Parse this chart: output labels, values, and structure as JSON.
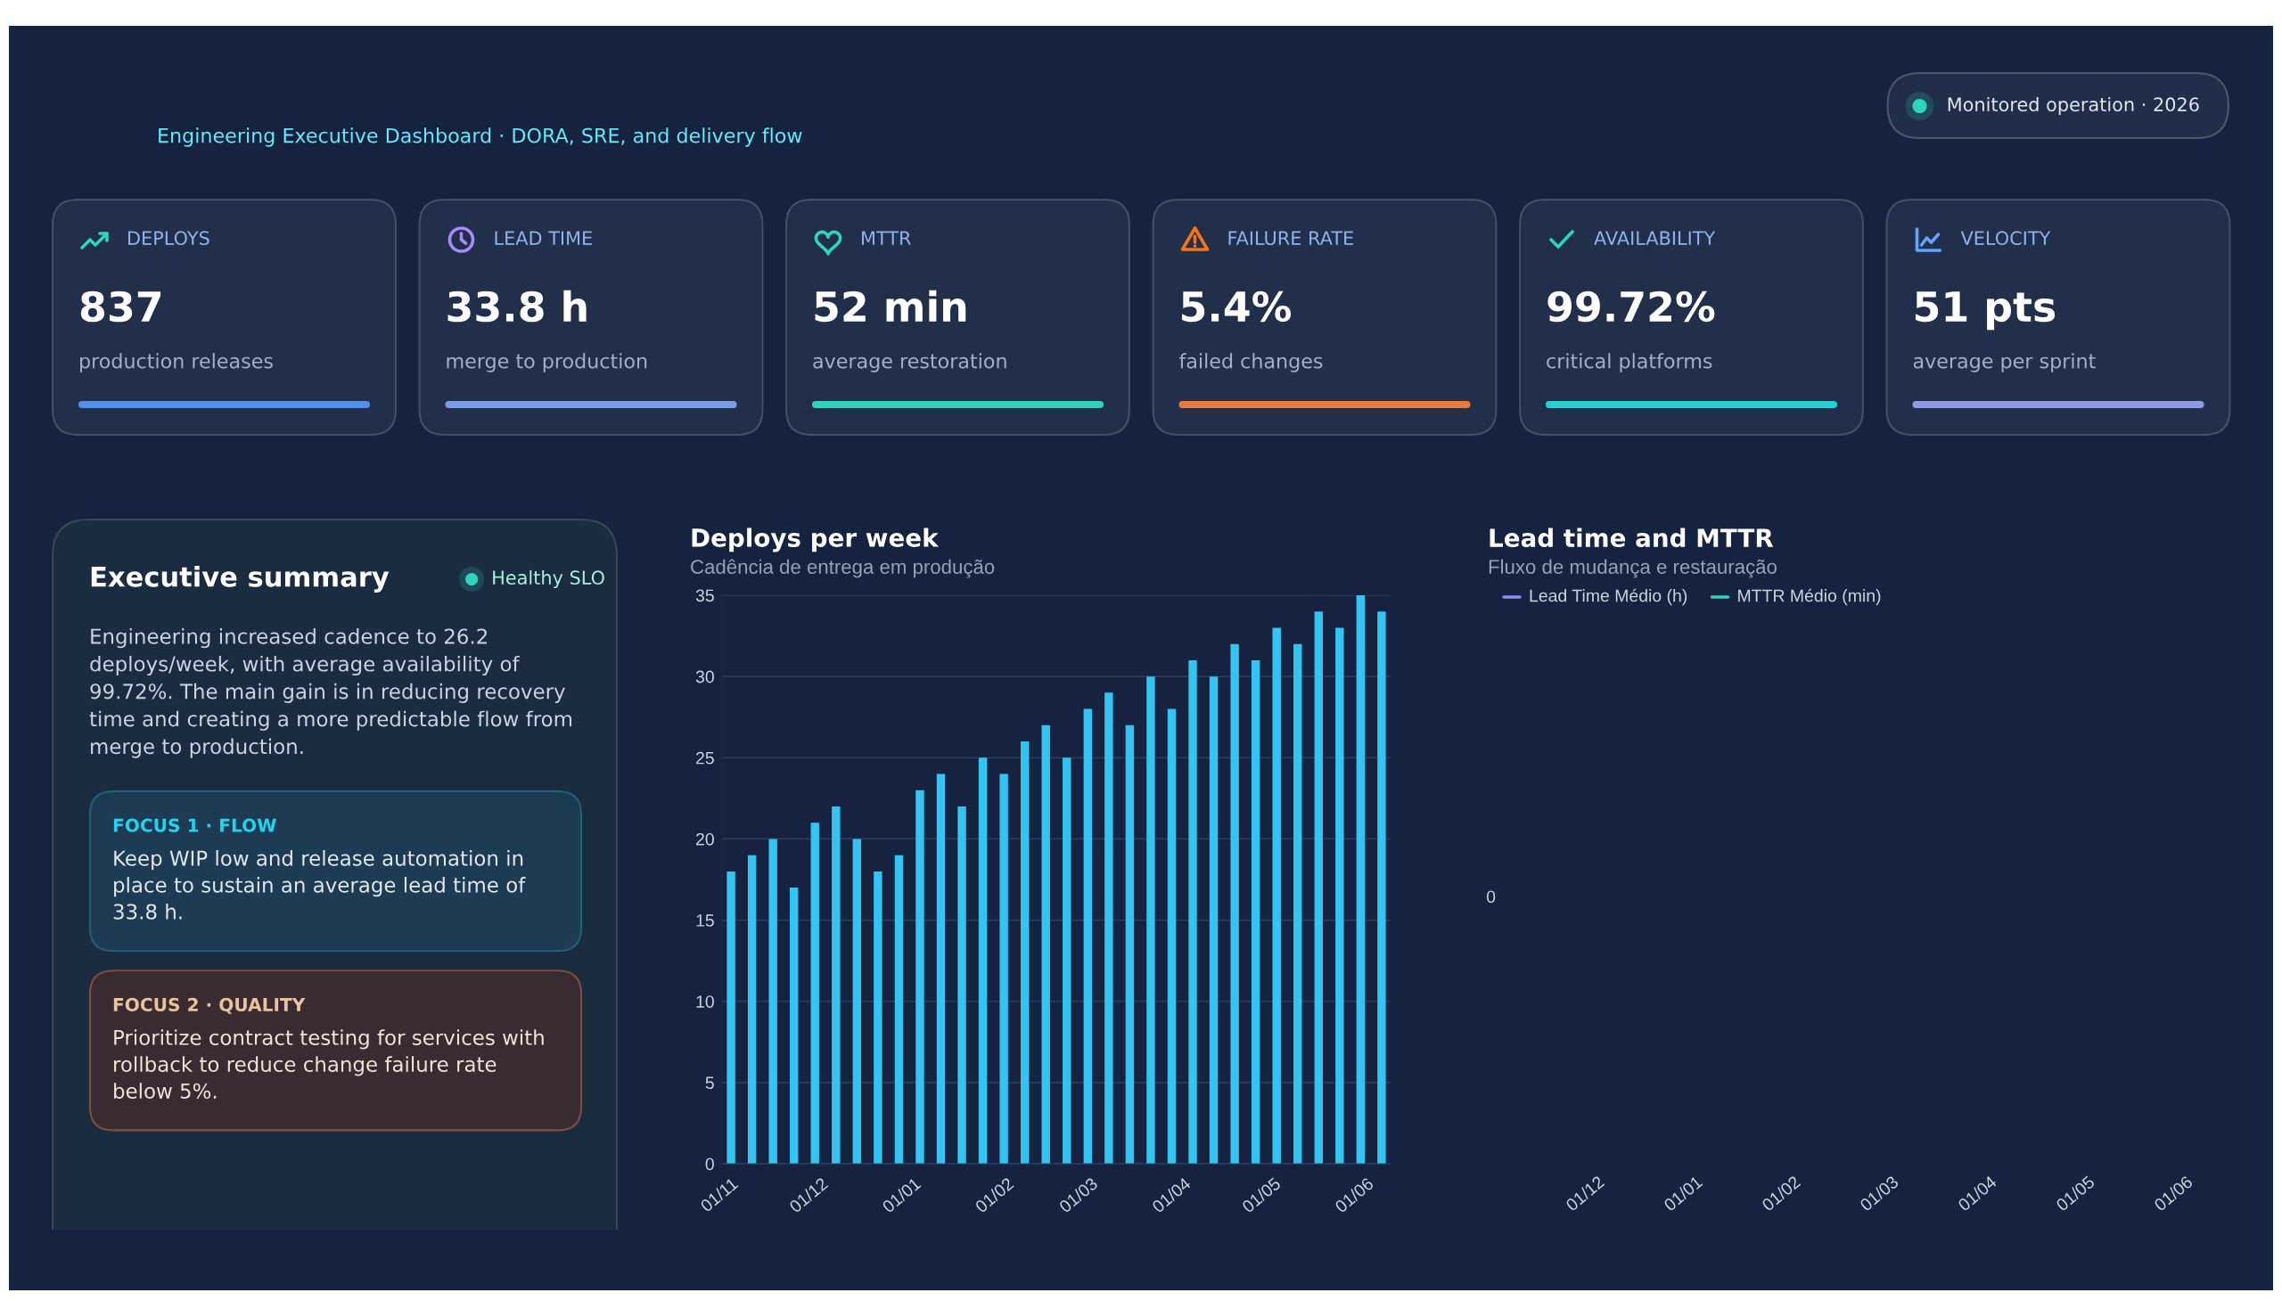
{
  "chart_data": [
    {
      "type": "other",
      "subtitle": "Engineering Executive Dashboard · DORA, SRE, and delivery flow",
      "annotations": [
        "Monitored operation · 2026"
      ]
    },
    {
      "type": "other",
      "title": "DEPLOYS",
      "annotations": [
        "837",
        "production releases"
      ]
    },
    {
      "type": "other",
      "title": "LEAD TIME",
      "annotations": [
        "33.8 h",
        "merge to production"
      ]
    },
    {
      "type": "other",
      "title": "MTTR",
      "annotations": [
        "52 min",
        "average restoration"
      ]
    },
    {
      "type": "other",
      "title": "FAILURE RATE",
      "annotations": [
        "5.4%",
        "failed changes"
      ]
    },
    {
      "type": "other",
      "title": "AVAILABILITY",
      "annotations": [
        "99.72%",
        "critical platforms"
      ]
    },
    {
      "type": "other",
      "title": "VELOCITY",
      "annotations": [
        "51 pts",
        "average per sprint"
      ]
    },
    {
      "type": "other",
      "title": "Executive summary",
      "annotations": [
        "Healthy SLO",
        "Engineering increased cadence to 26.2 deploys/week, with average availability of 99.72%. The main gain is in reducing recovery time and creating a more predictable flow from merge to production.",
        "FOCUS 1 · FLOW",
        "Keep WIP low and release automation in place to sustain an average lead time of 33.8 h.",
        "FOCUS 2 · QUALITY",
        "Prioritize contract testing for services with rollback to reduce change failure rate below 5%."
      ]
    },
    {
      "type": "bar",
      "title": "Deploys per week",
      "subtitle": "Cadência de entrega em produção",
      "x": [
        "2025-11-01",
        "2025-11-08",
        "2025-11-15",
        "2025-11-22",
        "2025-11-29",
        "2025-12-06",
        "2025-12-13",
        "2025-12-20",
        "2025-12-27",
        "2026-01-03",
        "2026-01-10",
        "2026-01-17",
        "2026-01-24",
        "2026-01-31",
        "2026-02-07",
        "2026-02-14",
        "2026-02-21",
        "2026-02-28",
        "2026-03-07",
        "2026-03-14",
        "2026-03-21",
        "2026-03-28",
        "2026-04-04",
        "2026-04-11",
        "2026-04-18",
        "2026-04-25",
        "2026-05-02",
        "2026-05-09",
        "2026-05-16",
        "2026-05-23",
        "2026-05-30",
        "2026-06-06"
      ],
      "values": [
        18,
        19,
        20,
        17,
        21,
        22,
        20,
        18,
        19,
        23,
        24,
        22,
        25,
        24,
        26,
        27,
        25,
        28,
        29,
        27,
        30,
        28,
        31,
        30,
        32,
        31,
        33,
        32,
        34,
        33,
        35,
        34
      ],
      "color": "#33c4f1",
      "xlim": [
        "2025-10-29",
        "2026-06-09"
      ],
      "xticks": [
        {
          "value": "2025-11-01",
          "label": "01/11"
        },
        {
          "value": "2025-12-01",
          "label": "01/12"
        },
        {
          "value": "2026-01-01",
          "label": "01/01"
        },
        {
          "value": "2026-02-01",
          "label": "01/02"
        },
        {
          "value": "2026-03-01",
          "label": "01/03"
        },
        {
          "value": "2026-04-01",
          "label": "01/04"
        },
        {
          "value": "2026-05-01",
          "label": "01/05"
        },
        {
          "value": "2026-06-01",
          "label": "01/06"
        }
      ],
      "ylim": [
        0,
        35
      ],
      "yticks": [
        0,
        5,
        10,
        15,
        20,
        25,
        30,
        35
      ],
      "grid": "y"
    },
    {
      "type": "other",
      "title": "Lead time and MTTR",
      "subtitle": "Fluxo de mudança e restauração",
      "annotations": [
        "Lead Time Médio (h)",
        "MTTR Médio (min)",
        "0",
        "01/12",
        "01/01",
        "01/02",
        "01/03",
        "01/04",
        "01/05",
        "01/06"
      ]
    }
  ]
}
